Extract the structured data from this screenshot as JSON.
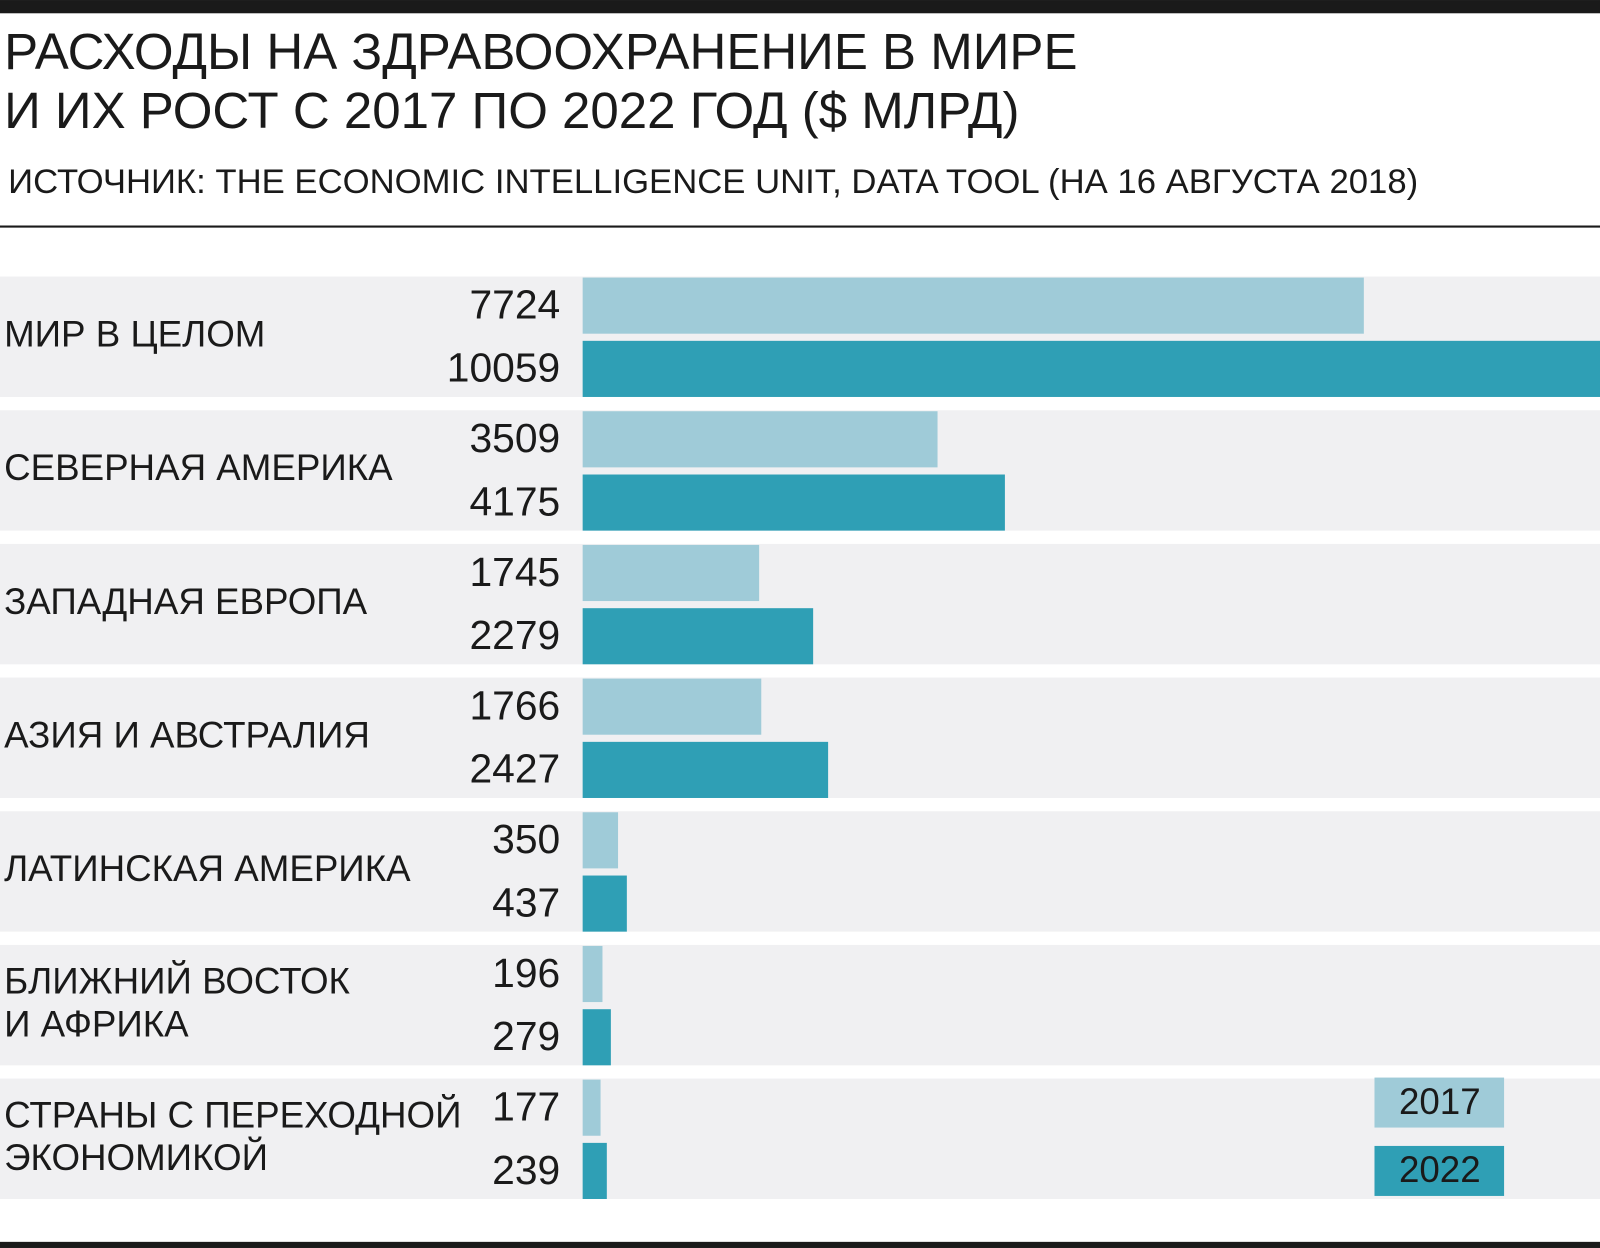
{
  "chart_data": {
    "type": "grouped-hbar",
    "title": "РАСХОДЫ НА ЗДРАВООХРАНЕНИЕ В МИРЕ\nИ ИХ РОСТ С 2017 ПО 2022 ГОД ($ МЛРД)",
    "subtitle": "ИСТОЧНИК: THE ECONOMIC INTELLIGENCE UNIT, DATA TOOL (НА 16 АВГУСТА 2018)",
    "categories": [
      "МИР В ЦЕЛОМ",
      "СЕВЕРНАЯ АМЕРИКА",
      "ЗАПАДНАЯ ЕВРОПА",
      "АЗИЯ И АВСТРАЛИЯ",
      "ЛАТИНСКАЯ АМЕРИКА",
      "БЛИЖНИЙ ВОСТОК\nИ АФРИКА",
      "СТРАНЫ С ПЕРЕХОДНОЙ\nЭКОНОМИКОЙ"
    ],
    "series": [
      {
        "name": "2017",
        "color": "#9fcbd8",
        "values": [
          7724,
          3509,
          1745,
          1766,
          350,
          196,
          177
        ]
      },
      {
        "name": "2022",
        "color": "#2f9fb5",
        "values": [
          10059,
          4175,
          2279,
          2427,
          437,
          279,
          239
        ]
      }
    ]
  }
}
